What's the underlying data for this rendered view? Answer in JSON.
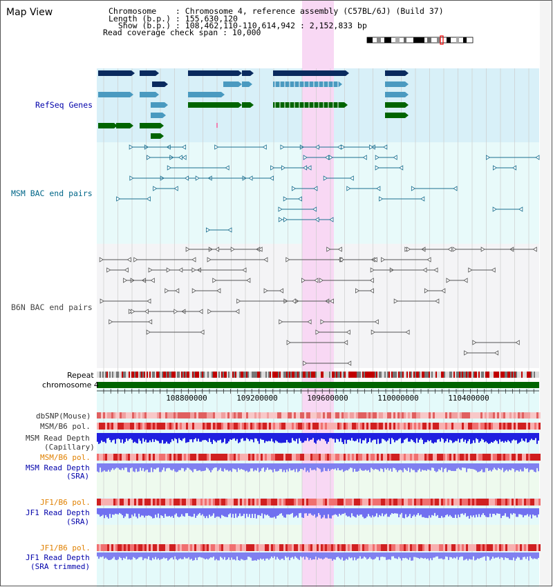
{
  "page": {
    "title": "Map View"
  },
  "info": {
    "line1": "Chromosome    : Chromosome 4, reference assembly (C57BL/6J) (Build 37)",
    "line2": "Length (b.p.) : 155,630,120",
    "line3": "  Show (b.p.) : 108,462,110-110,614,942 : 2,152,833 bp",
    "line4": "Read coverage check span : 10,000"
  },
  "tracks": {
    "refseq": {
      "label": "RefSeq Genes",
      "color": "#0000aa"
    },
    "msm_bac": {
      "label": "MSM BAC end pairs",
      "color": "#006688"
    },
    "b6n_bac": {
      "label": "B6N BAC end pairs",
      "color": "#444444"
    },
    "repeat": {
      "label": "Repeat"
    },
    "chromosome": {
      "label": "chromosome 4"
    },
    "dbsnp": {
      "label": "dbSNP(Mouse)"
    },
    "msm_b6_pol": {
      "label": "MSM/B6 pol."
    },
    "msm_depth_cap": {
      "label1": "MSM Read Depth",
      "label2": "(Capillary)"
    },
    "msm_b6_pol_sra": {
      "label": "MSM/B6 pol.",
      "color": "#e08000"
    },
    "msm_depth_sra": {
      "label1": "MSM Read Depth",
      "label2": "(SRA)",
      "color": "#0000aa"
    },
    "jf1_b6_pol": {
      "label": "JF1/B6 pol.",
      "color": "#e08000"
    },
    "jf1_depth_sra": {
      "label1": "JF1 Read Depth",
      "label2": "(SRA)",
      "color": "#0000aa"
    },
    "jf1_b6_pol_trim": {
      "label": "JF1/B6 pol.",
      "color": "#e08000"
    },
    "jf1_depth_trim": {
      "label1": "JF1 Read Depth",
      "label2": "(SRA trimmed)",
      "color": "#0000aa"
    }
  },
  "axis": {
    "ticks": [
      "108800000",
      "109200000",
      "109600000",
      "110000000",
      "110400000"
    ]
  },
  "colors": {
    "highlight": "#f8d8f4",
    "refseq_bg": "#d8f0f8",
    "bac_bg": "#e8fafa",
    "gene_dark": "#0a2a5e",
    "gene_light": "#4a9ac0",
    "gene_green": "#006400"
  }
}
